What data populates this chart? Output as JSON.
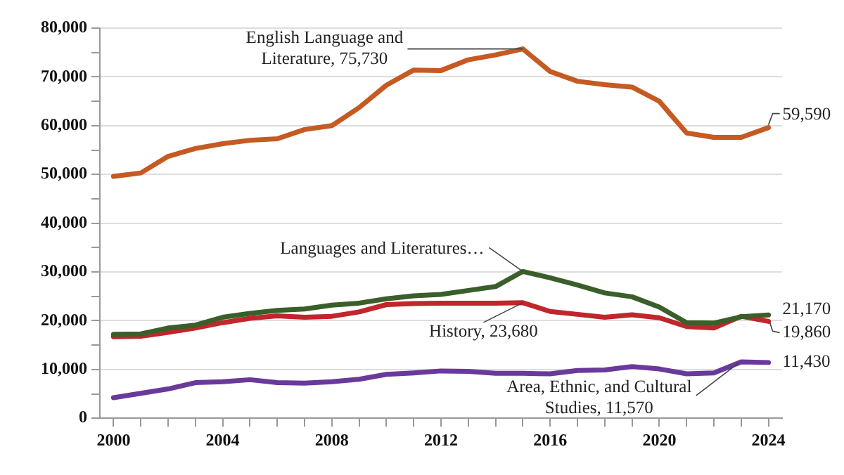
{
  "chart_data": {
    "type": "line",
    "x": [
      2000,
      2001,
      2002,
      2003,
      2004,
      2005,
      2006,
      2007,
      2008,
      2009,
      2010,
      2011,
      2012,
      2013,
      2014,
      2015,
      2016,
      2017,
      2018,
      2019,
      2020,
      2021,
      2022,
      2023,
      2024
    ],
    "series": [
      {
        "color": "#c55a22",
        "values": [
          49600,
          50300,
          53700,
          55300,
          56300,
          57000,
          57300,
          59200,
          60000,
          63700,
          68300,
          71400,
          71300,
          73500,
          74500,
          75730,
          71100,
          69100,
          68400,
          67900,
          65000,
          58500,
          57600,
          57600,
          59590
        ]
      },
      {
        "color": "#3a5f2a",
        "values": [
          17200,
          17300,
          18500,
          19100,
          20700,
          21500,
          22100,
          22400,
          23200,
          23600,
          24500,
          25100,
          25400,
          26200,
          27000,
          30100,
          28800,
          27300,
          25700,
          24900,
          22800,
          19600,
          19500,
          20800,
          21170
        ]
      },
      {
        "color": "#c0262c",
        "values": [
          16700,
          16800,
          17600,
          18500,
          19600,
          20500,
          21000,
          20700,
          20900,
          21800,
          23300,
          23500,
          23600,
          23600,
          23600,
          23680,
          21900,
          21300,
          20700,
          21200,
          20600,
          18800,
          18500,
          20900,
          19860
        ]
      },
      {
        "color": "#6a3a9a",
        "values": [
          4200,
          5100,
          6000,
          7300,
          7500,
          7900,
          7300,
          7200,
          7500,
          8000,
          9000,
          9300,
          9700,
          9600,
          9200,
          9200,
          9100,
          9800,
          9900,
          10600,
          10100,
          9100,
          9300,
          11570,
          11430
        ]
      }
    ],
    "xlim": [
      1999.5,
      2024.5
    ],
    "xticks": [
      {
        "value": 2000,
        "label": "2000"
      },
      {
        "value": 2001,
        "label": null
      },
      {
        "value": 2002,
        "label": null
      },
      {
        "value": 2003,
        "label": null
      },
      {
        "value": 2004,
        "label": "2004"
      },
      {
        "value": 2005,
        "label": null
      },
      {
        "value": 2006,
        "label": null
      },
      {
        "value": 2007,
        "label": null
      },
      {
        "value": 2008,
        "label": "2008"
      },
      {
        "value": 2009,
        "label": null
      },
      {
        "value": 2010,
        "label": null
      },
      {
        "value": 2011,
        "label": null
      },
      {
        "value": 2012,
        "label": "2012"
      },
      {
        "value": 2013,
        "label": null
      },
      {
        "value": 2014,
        "label": null
      },
      {
        "value": 2015,
        "label": null
      },
      {
        "value": 2016,
        "label": "2016"
      },
      {
        "value": 2017,
        "label": null
      },
      {
        "value": 2018,
        "label": null
      },
      {
        "value": 2019,
        "label": null
      },
      {
        "value": 2020,
        "label": "2020"
      },
      {
        "value": 2021,
        "label": null
      },
      {
        "value": 2022,
        "label": null
      },
      {
        "value": 2023,
        "label": null
      },
      {
        "value": 2024,
        "label": "2024"
      }
    ],
    "ylim": [
      0,
      80000
    ],
    "yticks": [
      {
        "value": 0,
        "label": "0"
      },
      {
        "value": 5000,
        "label": null
      },
      {
        "value": 10000,
        "label": "10,000"
      },
      {
        "value": 15000,
        "label": null
      },
      {
        "value": 20000,
        "label": "20,000"
      },
      {
        "value": 25000,
        "label": null
      },
      {
        "value": 30000,
        "label": "30,000"
      },
      {
        "value": 35000,
        "label": null
      },
      {
        "value": 40000,
        "label": "40,000"
      },
      {
        "value": 45000,
        "label": null
      },
      {
        "value": 50000,
        "label": "50,000"
      },
      {
        "value": 55000,
        "label": null
      },
      {
        "value": 60000,
        "label": "60,000"
      },
      {
        "value": 65000,
        "label": null
      },
      {
        "value": 70000,
        "label": "70,000"
      },
      {
        "value": 75000,
        "label": null
      },
      {
        "value": 80000,
        "label": "80,000"
      }
    ],
    "grid": "y",
    "legend": false,
    "marker": "none",
    "line_style": "solid",
    "annotations": [
      {
        "text": "English Language and Literature, 75,730",
        "x": 2015,
        "y": 75730
      },
      {
        "text": "Languages and Literatures…",
        "x": 2015,
        "y": 30100
      },
      {
        "text": "History, 23,680",
        "x": 2015,
        "y": 23680
      },
      {
        "text": "Area, Ethnic, and Cultural Studies, 11,570",
        "x": 2023,
        "y": 11570
      },
      {
        "text": "59,590",
        "x": 2024,
        "y": 59590
      },
      {
        "text": "21,170",
        "x": 2024,
        "y": 21170
      },
      {
        "text": "19,860",
        "x": 2024,
        "y": 19860
      },
      {
        "text": "11,430",
        "x": 2024,
        "y": 11430
      }
    ]
  }
}
